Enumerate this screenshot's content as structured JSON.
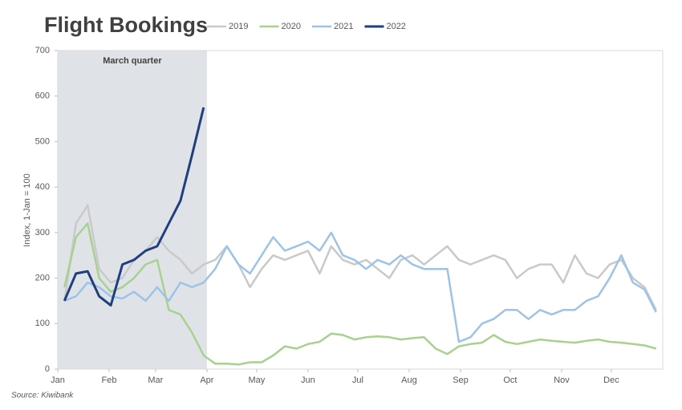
{
  "chart_data": {
    "type": "line",
    "title": "Flight Bookings",
    "y_label": "Index, 1-Jan = 100",
    "source": "Source: Kiwibank",
    "shaded_range": [
      1,
      91
    ],
    "shaded_label": "March quarter",
    "xlim": [
      1,
      366
    ],
    "xticks": [
      {
        "value": 1,
        "label": "Jan"
      },
      {
        "value": 32,
        "label": "Feb"
      },
      {
        "value": 60,
        "label": "Mar"
      },
      {
        "value": 91,
        "label": "Apr"
      },
      {
        "value": 121,
        "label": "May"
      },
      {
        "value": 152,
        "label": "Jun"
      },
      {
        "value": 182,
        "label": "Jul"
      },
      {
        "value": 213,
        "label": "Aug"
      },
      {
        "value": 244,
        "label": "Sep"
      },
      {
        "value": 274,
        "label": "Oct"
      },
      {
        "value": 305,
        "label": "Nov"
      },
      {
        "value": 335,
        "label": "Dec"
      }
    ],
    "ylim": [
      0,
      700
    ],
    "yticks": [
      0,
      100,
      200,
      300,
      400,
      500,
      600,
      700
    ],
    "x": [
      5,
      12,
      19,
      26,
      33,
      40,
      47,
      54,
      61,
      68,
      75,
      82,
      89,
      96,
      103,
      110,
      117,
      124,
      131,
      138,
      145,
      152,
      159,
      166,
      173,
      180,
      187,
      194,
      201,
      208,
      215,
      222,
      229,
      236,
      243,
      250,
      257,
      264,
      271,
      278,
      285,
      292,
      299,
      306,
      313,
      320,
      327,
      334,
      341,
      348,
      355,
      362
    ],
    "series": [
      {
        "name": "2019",
        "color": "#c9c9c9",
        "width": 2.5,
        "values": [
          150,
          320,
          360,
          220,
          190,
          200,
          240,
          260,
          290,
          260,
          240,
          210,
          230,
          240,
          270,
          230,
          180,
          220,
          250,
          240,
          250,
          260,
          210,
          270,
          240,
          230,
          240,
          220,
          200,
          240,
          250,
          230,
          250,
          270,
          240,
          230,
          240,
          250,
          240,
          200,
          220,
          230,
          230,
          190,
          250,
          210,
          200,
          230,
          240,
          200,
          180,
          130
        ]
      },
      {
        "name": "2020",
        "color": "#a9d18e",
        "width": 2.5,
        "values": [
          180,
          290,
          320,
          200,
          170,
          180,
          200,
          230,
          240,
          130,
          120,
          80,
          30,
          12,
          12,
          10,
          15,
          15,
          30,
          50,
          45,
          55,
          60,
          78,
          75,
          65,
          70,
          72,
          70,
          65,
          68,
          70,
          45,
          33,
          50,
          55,
          58,
          75,
          60,
          55,
          60,
          65,
          62,
          60,
          58,
          62,
          65,
          60,
          58,
          55,
          52,
          45
        ]
      },
      {
        "name": "2021",
        "color": "#9dc3e6",
        "width": 2.5,
        "values": [
          150,
          160,
          190,
          180,
          160,
          155,
          170,
          150,
          180,
          150,
          190,
          180,
          190,
          220,
          270,
          230,
          210,
          250,
          290,
          260,
          270,
          280,
          260,
          300,
          250,
          240,
          220,
          240,
          230,
          250,
          230,
          220,
          220,
          220,
          60,
          70,
          100,
          110,
          130,
          130,
          110,
          130,
          120,
          130,
          130,
          150,
          160,
          200,
          250,
          190,
          175,
          125
        ]
      },
      {
        "name": "2022",
        "color": "#1f3f7f",
        "width": 3,
        "values": [
          150,
          210,
          215,
          160,
          140,
          230,
          240,
          260,
          270,
          320,
          370,
          470,
          575,
          null,
          null,
          null,
          null,
          null,
          null,
          null,
          null,
          null,
          null,
          null,
          null,
          null,
          null,
          null,
          null,
          null,
          null,
          null,
          null,
          null,
          null,
          null,
          null,
          null,
          null,
          null,
          null,
          null,
          null,
          null,
          null,
          null,
          null,
          null,
          null,
          null,
          null,
          null
        ]
      }
    ]
  }
}
